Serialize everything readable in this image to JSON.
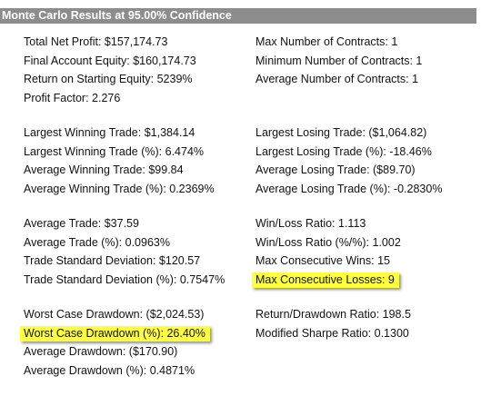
{
  "header": {
    "title": "Monte Carlo Results at 95.00% Confidence"
  },
  "left": {
    "groups": [
      {
        "rows": [
          "Total Net Profit: $157,174.73",
          "Final Account Equity: $160,174.73",
          "Return on Starting Equity: 5239%",
          "Profit Factor: 2.276"
        ]
      },
      {
        "rows": [
          "Largest Winning Trade: $1,384.14",
          "Largest Winning Trade (%): 6.474%",
          "Average Winning Trade: $99.84",
          "Average Winning Trade (%): 0.2369%"
        ]
      },
      {
        "rows": [
          "Average Trade: $37.59",
          "Average Trade (%): 0.0963%",
          "Trade Standard Deviation: $120.57",
          "Trade Standard Deviation (%): 0.7547%"
        ]
      },
      {
        "rows": [
          "Worst Case Drawdown: ($2,024.53)",
          "Worst Case Drawdown (%): 26.40%",
          "Average Drawdown: ($170.90)",
          "Average Drawdown (%): 0.4871%"
        ]
      }
    ]
  },
  "right": {
    "groups": [
      {
        "rows": [
          "Max Number of Contracts: 1",
          "Minimum Number of Contracts: 1",
          "Average Number of Contracts: 1"
        ]
      },
      {
        "rows": [
          "Largest Losing Trade: ($1,064.82)",
          "Largest Losing Trade (%): -18.46%",
          "Average Losing Trade: ($89.70)",
          "Average Losing Trade (%): -0.2830%"
        ]
      },
      {
        "rows": [
          "Win/Loss Ratio: 1.113",
          "Win/Loss Ratio (%/%): 1.002",
          "Max Consecutive Wins: 15",
          "Max Consecutive Losses: 9"
        ]
      },
      {
        "rows": [
          "Return/Drawdown Ratio: 198.5",
          "Modified Sharpe Ratio: 0.1300"
        ]
      }
    ]
  },
  "highlight_color": "#ffff3c"
}
